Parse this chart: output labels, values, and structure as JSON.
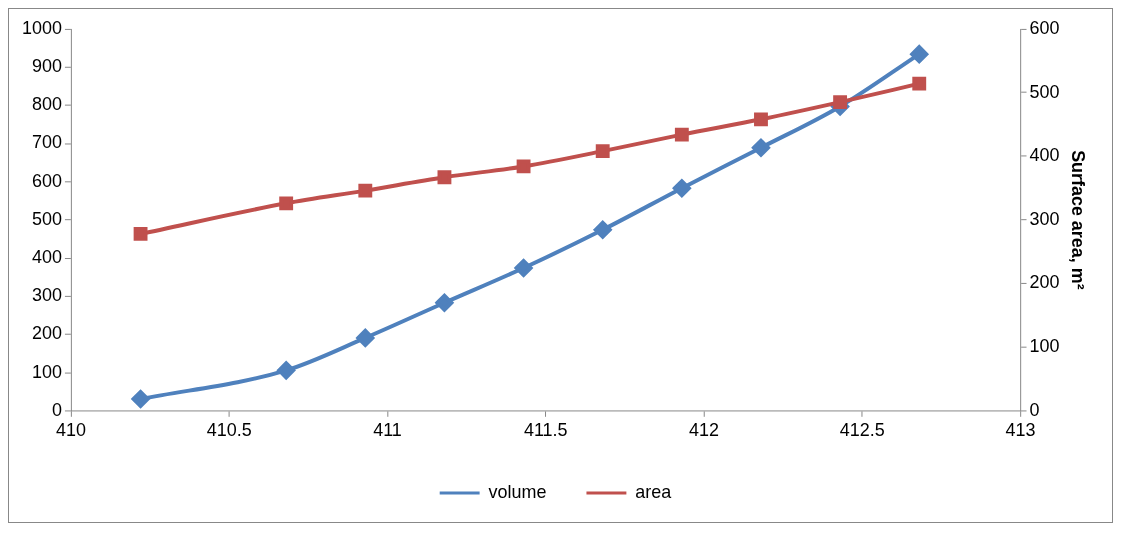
{
  "chart_data": {
    "type": "line",
    "y2label": "Surface area, m²",
    "x": [
      410.22,
      410.68,
      410.93,
      411.18,
      411.43,
      411.68,
      411.93,
      412.18,
      412.43,
      412.68
    ],
    "series": [
      {
        "name": "volume",
        "color": "#4f81bd",
        "marker": "diamond",
        "values": [
          31,
          106,
          191,
          283,
          374,
          474,
          583,
          689,
          797,
          934
        ]
      },
      {
        "name": "area",
        "color": "#c0504d",
        "marker": "square",
        "axis": "y2",
        "values": [
          278,
          326,
          346,
          367,
          384,
          408,
          434,
          458,
          485,
          514
        ]
      }
    ],
    "xlim": [
      410,
      413
    ],
    "xticks": [
      410,
      410.5,
      411,
      411.5,
      412,
      412.5,
      413
    ],
    "ylim": [
      0,
      1000
    ],
    "yticks": [
      0,
      100,
      200,
      300,
      400,
      500,
      600,
      700,
      800,
      900,
      1000
    ],
    "y2lim": [
      0,
      600
    ],
    "y2ticks": [
      0,
      100,
      200,
      300,
      400,
      500,
      600
    ],
    "grid": false,
    "legend": "bottom"
  }
}
